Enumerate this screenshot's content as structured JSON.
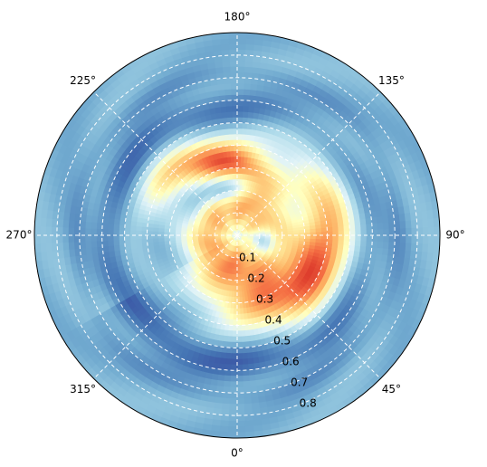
{
  "chart_data": {
    "type": "heatmap",
    "projection": "polar",
    "theta_zero_location": "bottom",
    "theta_direction": "counterclockwise",
    "colormap": "RdYlBu_r",
    "grid": true,
    "grid_style": "dashed white",
    "rlim": [
      0,
      0.9
    ],
    "angular_ticks": [
      {
        "deg": 0,
        "label": "0°"
      },
      {
        "deg": 45,
        "label": "45°"
      },
      {
        "deg": 90,
        "label": "90°"
      },
      {
        "deg": 135,
        "label": "135°"
      },
      {
        "deg": 180,
        "label": "180°"
      },
      {
        "deg": 225,
        "label": "225°"
      },
      {
        "deg": 270,
        "label": "270°"
      },
      {
        "deg": 315,
        "label": "315°"
      }
    ],
    "radial_ticks": [
      {
        "r": 0.1,
        "label": "0.1"
      },
      {
        "r": 0.2,
        "label": "0.2"
      },
      {
        "r": 0.3,
        "label": "0.3"
      },
      {
        "r": 0.4,
        "label": "0.4"
      },
      {
        "r": 0.5,
        "label": "0.5"
      },
      {
        "r": 0.6,
        "label": "0.6"
      },
      {
        "r": 0.7,
        "label": "0.7"
      },
      {
        "r": 0.8,
        "label": "0.8"
      }
    ],
    "radial_tick_label_angle_deg": 22.5,
    "value_range": [
      0,
      1
    ],
    "field_features": [
      {
        "kind": "warm_spiral_lobe",
        "theta_deg": [
          0,
          120
        ],
        "r": [
          0.18,
          0.5
        ],
        "peak": 0.85
      },
      {
        "kind": "warm_arm",
        "theta_deg": [
          150,
          230
        ],
        "r": [
          0.2,
          0.5
        ],
        "peak": 0.78
      },
      {
        "kind": "cool_ring",
        "r": [
          0.5,
          0.68
        ],
        "level": 0.08
      },
      {
        "kind": "background",
        "level": 0.2
      }
    ]
  }
}
